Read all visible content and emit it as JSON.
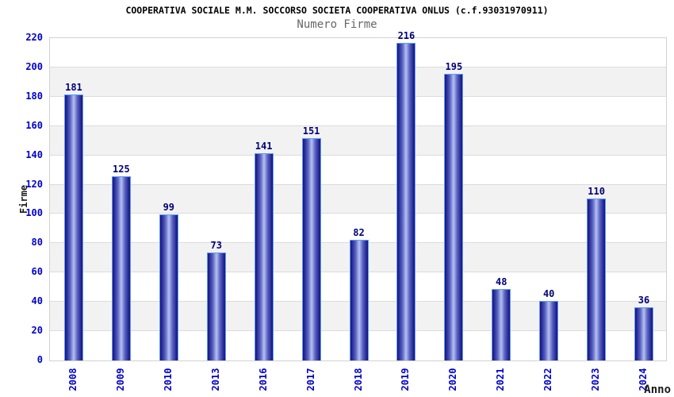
{
  "header": {
    "title": "COOPERATIVA SOCIALE M.M. SOCCORSO SOCIETA COOPERATIVA ONLUS (c.f.93031970911)",
    "subtitle": "Numero Firme"
  },
  "chart_data": {
    "type": "bar",
    "title": "Numero Firme",
    "categories": [
      "2008",
      "2009",
      "2010",
      "2013",
      "2016",
      "2017",
      "2018",
      "2019",
      "2020",
      "2021",
      "2022",
      "2023",
      "2024"
    ],
    "values": [
      181,
      125,
      99,
      73,
      141,
      151,
      82,
      216,
      195,
      48,
      40,
      110,
      36
    ],
    "xlabel": "Anno",
    "ylabel": "Firme",
    "ylim": [
      0,
      220
    ],
    "ytick_step": 20,
    "yticks": [
      0,
      20,
      40,
      60,
      80,
      100,
      120,
      140,
      160,
      180,
      200,
      220
    ],
    "grid": true,
    "legend": false,
    "colors": {
      "title_text": "#000000",
      "subtitle_text": "#666666",
      "axis_title_text": "#1a1a1a",
      "tick_text": "#0000cd",
      "value_label_text": "#000078",
      "band_gray": "#f2f2f2",
      "band_white": "#ffffff",
      "gridline": "#dcdcdc",
      "plot_border": "#d2d2d2",
      "bar_edge": "#15157d",
      "bar_mid2": "#2a2a97",
      "bar_mid": "#5a65c2",
      "bar_light": "#b6c1f2",
      "bar_border": "#5e9cf7"
    }
  }
}
